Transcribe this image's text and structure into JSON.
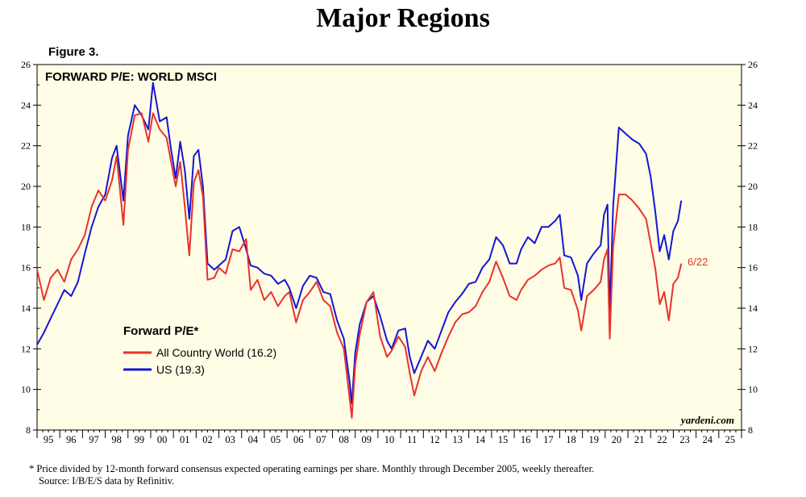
{
  "page_title": "Major Regions",
  "figure_label": "Figure 3.",
  "footnote": {
    "line1": "*  Price divided by 12-month forward consensus expected operating earnings per share. Monthly through December 2005, weekly thereafter.",
    "line2": "Source: I/B/E/S data by Refinitiv."
  },
  "colors": {
    "plot_background": "#fffde6",
    "acwi": "#e8322b",
    "us": "#1515d6"
  },
  "chart_data": {
    "type": "line",
    "title": "FORWARD P/E: WORLD MSCI",
    "legend_title": "Forward P/E*",
    "legend_position": "middle-left",
    "end_label": "6/22",
    "source": "yardeni.com",
    "ylim": [
      8,
      26
    ],
    "xlim": [
      1995,
      2026
    ],
    "y_ticks": [
      8,
      10,
      12,
      14,
      16,
      18,
      20,
      22,
      24,
      26
    ],
    "x_ticks": [
      1995,
      1996,
      1997,
      1998,
      1999,
      2000,
      2001,
      2002,
      2003,
      2004,
      2005,
      2006,
      2007,
      2008,
      2009,
      2010,
      2011,
      2012,
      2013,
      2014,
      2015,
      2016,
      2017,
      2018,
      2019,
      2020,
      2021,
      2022,
      2023,
      2024,
      2025
    ],
    "x_tick_labels": [
      "95",
      "96",
      "97",
      "98",
      "99",
      "00",
      "01",
      "02",
      "03",
      "04",
      "05",
      "06",
      "07",
      "08",
      "09",
      "10",
      "11",
      "12",
      "13",
      "14",
      "15",
      "16",
      "17",
      "18",
      "19",
      "20",
      "21",
      "22",
      "23",
      "24",
      "25"
    ],
    "series": [
      {
        "name": "All Country World (16.2)",
        "color": "#e8322b",
        "points": [
          [
            1995.0,
            15.9
          ],
          [
            1995.3,
            14.4
          ],
          [
            1995.6,
            15.5
          ],
          [
            1995.9,
            15.9
          ],
          [
            1996.2,
            15.3
          ],
          [
            1996.5,
            16.4
          ],
          [
            1996.8,
            16.9
          ],
          [
            1997.1,
            17.6
          ],
          [
            1997.4,
            19.0
          ],
          [
            1997.7,
            19.8
          ],
          [
            1998.0,
            19.3
          ],
          [
            1998.3,
            20.3
          ],
          [
            1998.5,
            21.5
          ],
          [
            1998.8,
            18.1
          ],
          [
            1999.0,
            21.8
          ],
          [
            1999.3,
            23.5
          ],
          [
            1999.6,
            23.6
          ],
          [
            1999.9,
            22.2
          ],
          [
            2000.1,
            23.6
          ],
          [
            2000.4,
            22.8
          ],
          [
            2000.7,
            22.4
          ],
          [
            2000.9,
            21.2
          ],
          [
            2001.1,
            20.0
          ],
          [
            2001.3,
            21.2
          ],
          [
            2001.5,
            19.0
          ],
          [
            2001.7,
            16.6
          ],
          [
            2001.9,
            20.2
          ],
          [
            2002.1,
            20.8
          ],
          [
            2002.3,
            19.5
          ],
          [
            2002.5,
            15.4
          ],
          [
            2002.8,
            15.5
          ],
          [
            2003.0,
            16.0
          ],
          [
            2003.3,
            15.7
          ],
          [
            2003.6,
            16.9
          ],
          [
            2003.9,
            16.8
          ],
          [
            2004.2,
            17.4
          ],
          [
            2004.4,
            14.9
          ],
          [
            2004.7,
            15.4
          ],
          [
            2005.0,
            14.4
          ],
          [
            2005.3,
            14.8
          ],
          [
            2005.6,
            14.1
          ],
          [
            2005.9,
            14.6
          ],
          [
            2006.1,
            14.8
          ],
          [
            2006.4,
            13.3
          ],
          [
            2006.7,
            14.4
          ],
          [
            2007.0,
            14.8
          ],
          [
            2007.3,
            15.3
          ],
          [
            2007.6,
            14.4
          ],
          [
            2007.9,
            14.1
          ],
          [
            2008.2,
            12.8
          ],
          [
            2008.5,
            12.0
          ],
          [
            2008.75,
            9.6
          ],
          [
            2008.85,
            8.6
          ],
          [
            2009.0,
            11.2
          ],
          [
            2009.2,
            12.7
          ],
          [
            2009.5,
            14.3
          ],
          [
            2009.8,
            14.8
          ],
          [
            2010.1,
            12.6
          ],
          [
            2010.4,
            11.6
          ],
          [
            2010.6,
            11.9
          ],
          [
            2010.9,
            12.6
          ],
          [
            2011.2,
            12.1
          ],
          [
            2011.4,
            10.8
          ],
          [
            2011.6,
            9.7
          ],
          [
            2011.9,
            10.9
          ],
          [
            2012.2,
            11.6
          ],
          [
            2012.5,
            10.9
          ],
          [
            2012.8,
            11.8
          ],
          [
            2013.1,
            12.6
          ],
          [
            2013.4,
            13.3
          ],
          [
            2013.7,
            13.7
          ],
          [
            2014.0,
            13.8
          ],
          [
            2014.3,
            14.1
          ],
          [
            2014.6,
            14.8
          ],
          [
            2014.9,
            15.3
          ],
          [
            2015.2,
            16.3
          ],
          [
            2015.5,
            15.5
          ],
          [
            2015.8,
            14.6
          ],
          [
            2016.1,
            14.4
          ],
          [
            2016.3,
            14.9
          ],
          [
            2016.6,
            15.4
          ],
          [
            2016.9,
            15.6
          ],
          [
            2017.2,
            15.9
          ],
          [
            2017.5,
            16.1
          ],
          [
            2017.8,
            16.2
          ],
          [
            2018.0,
            16.5
          ],
          [
            2018.2,
            15.0
          ],
          [
            2018.5,
            14.9
          ],
          [
            2018.8,
            13.9
          ],
          [
            2018.95,
            12.9
          ],
          [
            2019.2,
            14.6
          ],
          [
            2019.5,
            14.9
          ],
          [
            2019.8,
            15.3
          ],
          [
            2019.95,
            16.4
          ],
          [
            2020.1,
            16.9
          ],
          [
            2020.2,
            12.5
          ],
          [
            2020.35,
            17.0
          ],
          [
            2020.6,
            19.6
          ],
          [
            2020.9,
            19.6
          ],
          [
            2021.2,
            19.3
          ],
          [
            2021.5,
            18.9
          ],
          [
            2021.8,
            18.4
          ],
          [
            2022.0,
            17.2
          ],
          [
            2022.2,
            16.0
          ],
          [
            2022.4,
            14.2
          ],
          [
            2022.6,
            14.8
          ],
          [
            2022.8,
            13.4
          ],
          [
            2023.0,
            15.2
          ],
          [
            2023.2,
            15.5
          ],
          [
            2023.35,
            16.2
          ]
        ]
      },
      {
        "name": "US (19.3)",
        "color": "#1515d6",
        "points": [
          [
            1995.0,
            12.2
          ],
          [
            1995.3,
            12.8
          ],
          [
            1995.6,
            13.5
          ],
          [
            1995.9,
            14.2
          ],
          [
            1996.2,
            14.9
          ],
          [
            1996.5,
            14.6
          ],
          [
            1996.8,
            15.3
          ],
          [
            1997.1,
            16.7
          ],
          [
            1997.4,
            18.0
          ],
          [
            1997.7,
            19.0
          ],
          [
            1998.0,
            19.6
          ],
          [
            1998.3,
            21.4
          ],
          [
            1998.5,
            22.0
          ],
          [
            1998.8,
            19.3
          ],
          [
            1999.0,
            22.5
          ],
          [
            1999.3,
            24.0
          ],
          [
            1999.6,
            23.5
          ],
          [
            1999.9,
            22.8
          ],
          [
            2000.1,
            25.1
          ],
          [
            2000.4,
            23.2
          ],
          [
            2000.7,
            23.4
          ],
          [
            2000.9,
            21.8
          ],
          [
            2001.1,
            20.4
          ],
          [
            2001.3,
            22.2
          ],
          [
            2001.5,
            20.8
          ],
          [
            2001.7,
            18.4
          ],
          [
            2001.9,
            21.5
          ],
          [
            2002.1,
            21.8
          ],
          [
            2002.3,
            20.0
          ],
          [
            2002.5,
            16.2
          ],
          [
            2002.8,
            15.9
          ],
          [
            2003.0,
            16.1
          ],
          [
            2003.3,
            16.4
          ],
          [
            2003.6,
            17.8
          ],
          [
            2003.9,
            18.0
          ],
          [
            2004.2,
            16.9
          ],
          [
            2004.4,
            16.1
          ],
          [
            2004.7,
            16.0
          ],
          [
            2005.0,
            15.7
          ],
          [
            2005.3,
            15.6
          ],
          [
            2005.6,
            15.2
          ],
          [
            2005.9,
            15.4
          ],
          [
            2006.1,
            15.0
          ],
          [
            2006.4,
            14.0
          ],
          [
            2006.7,
            15.1
          ],
          [
            2007.0,
            15.6
          ],
          [
            2007.3,
            15.5
          ],
          [
            2007.6,
            14.8
          ],
          [
            2007.9,
            14.7
          ],
          [
            2008.2,
            13.4
          ],
          [
            2008.5,
            12.5
          ],
          [
            2008.75,
            10.4
          ],
          [
            2008.85,
            9.3
          ],
          [
            2009.0,
            11.8
          ],
          [
            2009.2,
            13.2
          ],
          [
            2009.5,
            14.3
          ],
          [
            2009.8,
            14.6
          ],
          [
            2010.1,
            13.6
          ],
          [
            2010.4,
            12.4
          ],
          [
            2010.6,
            12.0
          ],
          [
            2010.9,
            12.9
          ],
          [
            2011.2,
            13.0
          ],
          [
            2011.4,
            11.6
          ],
          [
            2011.6,
            10.8
          ],
          [
            2011.9,
            11.6
          ],
          [
            2012.2,
            12.4
          ],
          [
            2012.5,
            12.0
          ],
          [
            2012.8,
            12.9
          ],
          [
            2013.1,
            13.8
          ],
          [
            2013.4,
            14.3
          ],
          [
            2013.7,
            14.7
          ],
          [
            2014.0,
            15.2
          ],
          [
            2014.3,
            15.3
          ],
          [
            2014.6,
            16.0
          ],
          [
            2014.9,
            16.4
          ],
          [
            2015.2,
            17.5
          ],
          [
            2015.5,
            17.1
          ],
          [
            2015.8,
            16.2
          ],
          [
            2016.1,
            16.2
          ],
          [
            2016.3,
            16.9
          ],
          [
            2016.6,
            17.5
          ],
          [
            2016.9,
            17.2
          ],
          [
            2017.2,
            18.0
          ],
          [
            2017.5,
            18.0
          ],
          [
            2017.8,
            18.3
          ],
          [
            2018.0,
            18.6
          ],
          [
            2018.2,
            16.6
          ],
          [
            2018.5,
            16.5
          ],
          [
            2018.8,
            15.6
          ],
          [
            2018.95,
            14.4
          ],
          [
            2019.2,
            16.2
          ],
          [
            2019.5,
            16.7
          ],
          [
            2019.8,
            17.1
          ],
          [
            2019.95,
            18.6
          ],
          [
            2020.1,
            19.1
          ],
          [
            2020.2,
            13.8
          ],
          [
            2020.35,
            19.0
          ],
          [
            2020.6,
            22.9
          ],
          [
            2020.9,
            22.6
          ],
          [
            2021.2,
            22.3
          ],
          [
            2021.5,
            22.1
          ],
          [
            2021.8,
            21.6
          ],
          [
            2022.0,
            20.5
          ],
          [
            2022.2,
            18.8
          ],
          [
            2022.4,
            16.8
          ],
          [
            2022.6,
            17.6
          ],
          [
            2022.8,
            16.4
          ],
          [
            2023.0,
            17.8
          ],
          [
            2023.2,
            18.3
          ],
          [
            2023.35,
            19.3
          ]
        ]
      }
    ]
  }
}
